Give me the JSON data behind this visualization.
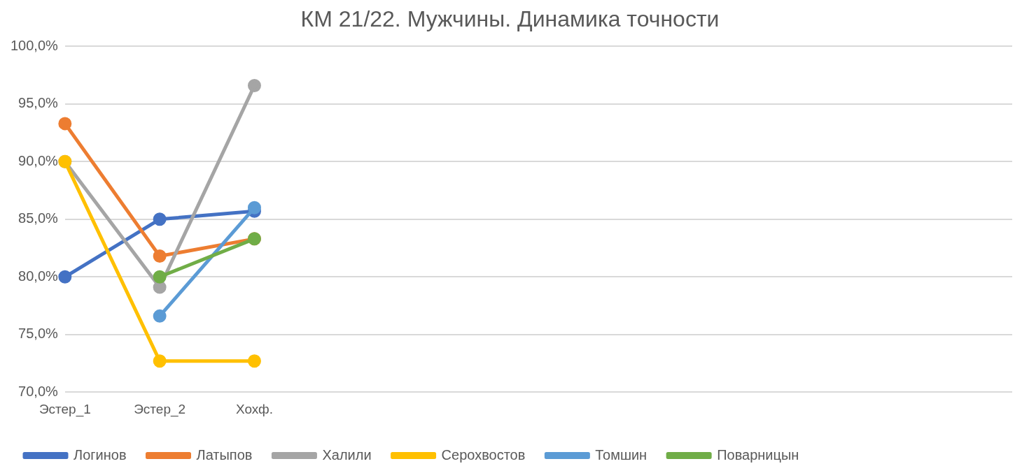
{
  "chart_data": {
    "type": "line",
    "title": "КМ 21/22. Мужчины. Динамика точности",
    "categories": [
      "Эстер_1",
      "Эстер_2",
      "Хохф.",
      null,
      null,
      null,
      null,
      null,
      null,
      null,
      null
    ],
    "series": [
      {
        "name": "Логинов",
        "color": "#4472c4",
        "values": [
          80,
          85,
          85.7,
          null,
          null,
          null,
          null,
          null,
          null,
          null,
          null
        ]
      },
      {
        "name": "Латыпов",
        "color": "#ed7d31",
        "values": [
          93.3,
          81.8,
          83.3,
          null,
          null,
          null,
          null,
          null,
          null,
          null,
          null
        ]
      },
      {
        "name": "Халили",
        "color": "#a5a5a5",
        "values": [
          90,
          79.1,
          96.6,
          null,
          null,
          null,
          null,
          null,
          null,
          null,
          null
        ]
      },
      {
        "name": "Серохвостов",
        "color": "#ffc000",
        "values": [
          90,
          72.7,
          72.7,
          null,
          null,
          null,
          null,
          null,
          null,
          null,
          null
        ]
      },
      {
        "name": "Томшин",
        "color": "#5b9bd5",
        "values": [
          null,
          76.6,
          86,
          null,
          null,
          null,
          null,
          null,
          null,
          null,
          null
        ]
      },
      {
        "name": "Поварницын",
        "color": "#70ad47",
        "values": [
          null,
          80,
          83.3,
          null,
          null,
          null,
          null,
          null,
          null,
          null,
          null
        ]
      }
    ],
    "ylim": [
      70,
      100
    ],
    "yticks": [
      {
        "value": 70,
        "label": "70,0%"
      },
      {
        "value": 75,
        "label": "75,0%"
      },
      {
        "value": 80,
        "label": "80,0%"
      },
      {
        "value": 85,
        "label": "85,0%"
      },
      {
        "value": 90,
        "label": "90,0%"
      },
      {
        "value": 95,
        "label": "95,0%"
      },
      {
        "value": 100,
        "label": "100,0%"
      }
    ],
    "grid": "y",
    "legend": "bottom",
    "marker": "circle",
    "line_style": "solid"
  }
}
